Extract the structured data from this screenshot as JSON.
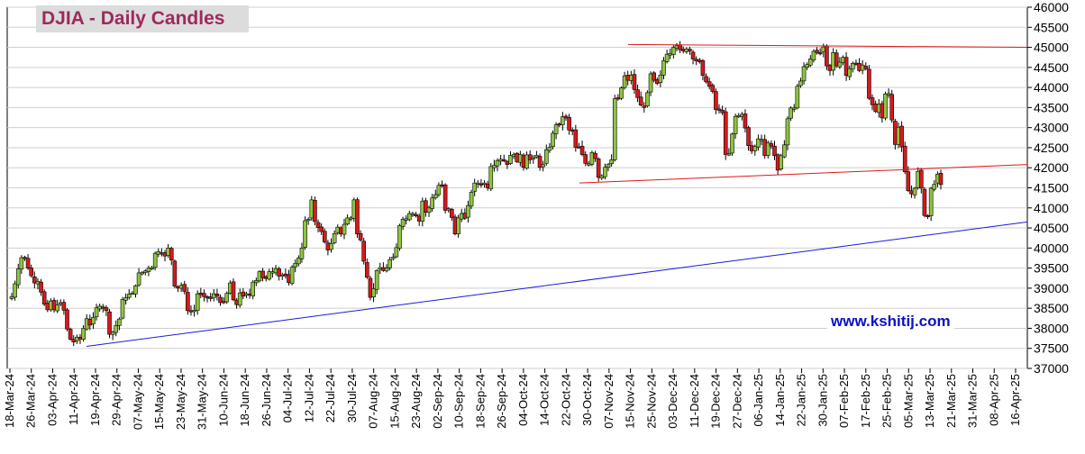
{
  "title": "DJIA - Daily Candles",
  "watermark": "www.kshitij.com",
  "chart_data": {
    "type": "candlestick",
    "title": "DJIA - Daily Candles",
    "ylim": [
      37000,
      46000
    ],
    "y_ticks": [
      37000,
      37500,
      38000,
      38500,
      39000,
      39500,
      40000,
      40500,
      41000,
      41500,
      42000,
      42500,
      43000,
      43500,
      44000,
      44500,
      45000,
      45500,
      46000
    ],
    "grid": true,
    "x_ticks": [
      "18-Mar-24",
      "26-Mar-24",
      "03-Apr-24",
      "11-Apr-24",
      "19-Apr-24",
      "29-Apr-24",
      "07-May-24",
      "15-May-24",
      "23-May-24",
      "31-May-24",
      "10-Jun-24",
      "18-Jun-24",
      "26-Jun-24",
      "04-Jul-24",
      "12-Jul-24",
      "22-Jul-24",
      "30-Jul-24",
      "07-Aug-24",
      "15-Aug-24",
      "23-Aug-24",
      "02-Sep-24",
      "10-Sep-24",
      "18-Sep-24",
      "26-Sep-24",
      "04-Oct-24",
      "14-Oct-24",
      "22-Oct-24",
      "30-Oct-24",
      "07-Nov-24",
      "15-Nov-24",
      "25-Nov-24",
      "03-Dec-24",
      "11-Dec-24",
      "19-Dec-24",
      "27-Dec-24",
      "06-Jan-25",
      "14-Jan-25",
      "22-Jan-25",
      "30-Jan-25",
      "07-Feb-25",
      "17-Feb-25",
      "25-Feb-25",
      "05-Mar-25",
      "13-Mar-25",
      "21-Mar-25",
      "31-Mar-25",
      "08-Apr-25",
      "16-Apr-25"
    ],
    "closes": [
      38790,
      39110,
      39480,
      39760,
      39760,
      39500,
      39310,
      39130,
      39170,
      38900,
      38600,
      38460,
      38680,
      38460,
      38580,
      38640,
      38450,
      37980,
      37730,
      37660,
      37780,
      37730,
      38000,
      38240,
      38080,
      38270,
      38510,
      38550,
      38500,
      38440,
      37850,
      37900,
      38070,
      38230,
      38720,
      38760,
      38850,
      38880,
      39060,
      39380,
      39390,
      39430,
      39500,
      39510,
      39870,
      39910,
      39870,
      39800,
      40000,
      39700,
      39050,
      39000,
      39070,
      38920,
      38440,
      38420,
      38450,
      38860,
      38840,
      38790,
      38780,
      38740,
      38860,
      38800,
      38640,
      38650,
      38870,
      39130,
      38710,
      38590,
      38880,
      38800,
      38860,
      38830,
      39150,
      39190,
      39410,
      39260,
      39240,
      39410,
      39410,
      39490,
      39300,
      39330,
      39310,
      39140,
      39520,
      39620,
      39750,
      40000,
      40680,
      40720,
      41200,
      40660,
      40510,
      40410,
      40150,
      39950,
      40110,
      40360,
      40520,
      40350,
      40590,
      40750,
      40750,
      41200,
      40350,
      40200,
      39670,
      39270,
      38770,
      38990,
      39440,
      39510,
      39440,
      39500,
      39710,
      39770,
      40010,
      40560,
      40720,
      40730,
      40860,
      40860,
      40800,
      40670,
      41170,
      40890,
      41000,
      41250,
      41330,
      41560,
      41560,
      40940,
      40980,
      40760,
      40350,
      40750,
      40860,
      40740,
      41060,
      41390,
      41620,
      41620,
      41600,
      41620,
      41500,
      42030,
      42060,
      42180,
      42210,
      42180,
      42080,
      42310,
      42330,
      42150,
      42330,
      42010,
      42320,
      42200,
      42250,
      42310,
      42010,
      42080,
      42450,
      42510,
      42860,
      43070,
      43080,
      43270,
      43240,
      42940,
      42930,
      42510,
      42520,
      42330,
      42110,
      42100,
      42380,
      42230,
      41760,
      41800,
      42010,
      42080,
      42200,
      43720,
      43730,
      43990,
      44290,
      44180,
      44310,
      43950,
      43750,
      43560,
      43510,
      43870,
      44340,
      44180,
      44100,
      44310,
      44670,
      44830,
      44850,
      45000,
      45040,
      44940,
      44910,
      44960,
      44910,
      44710,
      44660,
      44640,
      44300,
      44140,
      44030,
      43900,
      43450,
      43460,
      43370,
      42330,
      42350,
      42840,
      43280,
      43300,
      43330,
      42990,
      42550,
      42420,
      42530,
      42720,
      42710,
      42300,
      42620,
      42540,
      42300,
      41940,
      42300,
      42570,
      43220,
      43490,
      43490,
      44030,
      44160,
      44520,
      44570,
      44710,
      44900,
      44870,
      44860,
      45010,
      44540,
      44420,
      44870,
      44540,
      44630,
      44750,
      44300,
      44470,
      44600,
      44590,
      44420,
      44560,
      44470,
      43730,
      43570,
      43400,
      43580,
      43240,
      43840,
      43850,
      43190,
      42580,
      43010,
      42520,
      41900,
      41430,
      41350,
      41490,
      41910,
      41490,
      40810,
      40790,
      41490,
      41590,
      41840,
      41580
    ]
  }
}
